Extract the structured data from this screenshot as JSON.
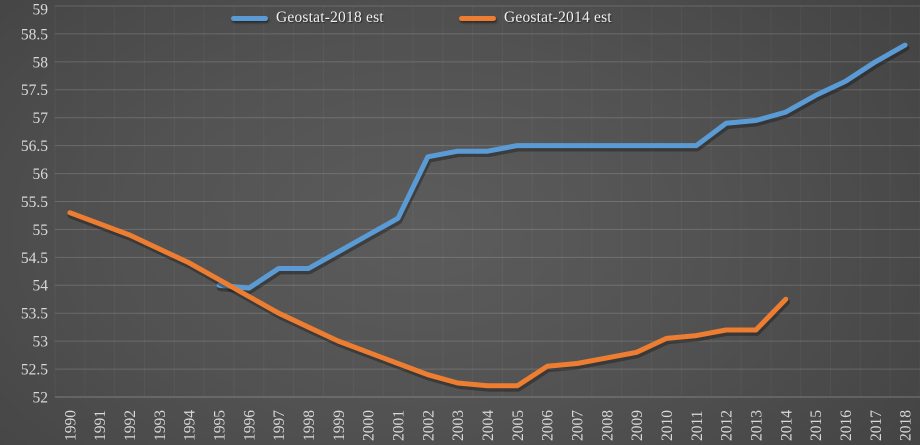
{
  "chart_data": {
    "type": "line",
    "title": "",
    "xlabel": "",
    "ylabel": "",
    "x_categories": [
      "1990",
      "1991",
      "1992",
      "1993",
      "1994",
      "1995",
      "1996",
      "1997",
      "1998",
      "1999",
      "2000",
      "2001",
      "2002",
      "2003",
      "2004",
      "2005",
      "2006",
      "2007",
      "2008",
      "2009",
      "2010",
      "2011",
      "2012",
      "2013",
      "2014",
      "2015",
      "2016",
      "2017",
      "2018"
    ],
    "series": [
      {
        "name": "Geostat-2018 est",
        "color": "#5B9BD5",
        "values": [
          null,
          null,
          null,
          null,
          null,
          54.0,
          53.95,
          54.3,
          54.3,
          54.6,
          54.9,
          55.2,
          56.3,
          56.4,
          56.4,
          56.5,
          56.5,
          56.5,
          56.5,
          56.5,
          56.5,
          56.5,
          56.9,
          56.95,
          57.1,
          57.4,
          57.65,
          58.0,
          58.3
        ]
      },
      {
        "name": "Geostat-2014 est",
        "color": "#ED7D31",
        "values": [
          55.3,
          55.1,
          54.9,
          54.65,
          54.4,
          54.1,
          53.8,
          53.5,
          53.25,
          53.0,
          52.8,
          52.6,
          52.4,
          52.25,
          52.2,
          52.2,
          52.55,
          52.6,
          52.7,
          52.8,
          53.05,
          53.1,
          53.2,
          53.2,
          53.75,
          null,
          null,
          null,
          null
        ]
      }
    ],
    "ylim": [
      52,
      59
    ],
    "ytick_step": 0.5,
    "yticks": [
      "52",
      "52.5",
      "53",
      "53.5",
      "54",
      "54.5",
      "55",
      "55.5",
      "56",
      "56.5",
      "57",
      "57.5",
      "58",
      "58.5",
      "59"
    ],
    "grid": "horizontal-major",
    "legend_position": "top-center",
    "colors": {
      "axis_text": "#d9d9d9",
      "legend_text": "#efefef",
      "gridline": "rgba(255,255,255,0.16)",
      "axis_line": "rgba(255,255,255,0.28)",
      "category_separator": "rgba(255,255,255,0.045)"
    }
  }
}
